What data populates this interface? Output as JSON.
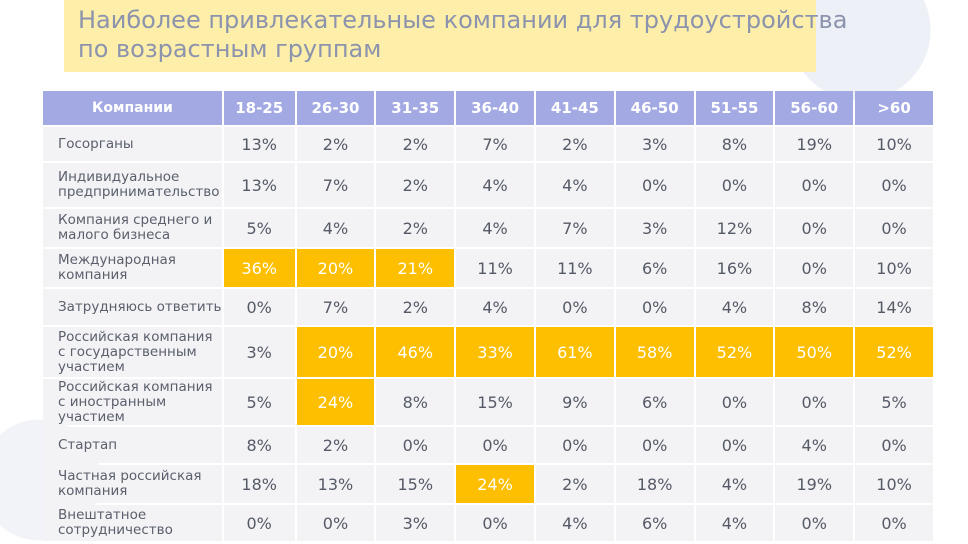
{
  "title": {
    "line1": "Наиболее привлекательные компании для трудоустройства",
    "line2": "по возрастным группам"
  },
  "colors": {
    "header_bg": "#a3a9e3",
    "cell_bg": "#f3f3f6",
    "highlight_bg": "#fdbf00",
    "title_bg": "#fdeeaa"
  },
  "chart_data": {
    "type": "table",
    "corner_header": "Компании",
    "columns": [
      "18-25",
      "26-30",
      "31-35",
      "36-40",
      "41-45",
      "46-50",
      "51-55",
      "56-60",
      ">60"
    ],
    "rows": [
      {
        "label": "Госорганы",
        "values": [
          "13%",
          "2%",
          "2%",
          "7%",
          "2%",
          "3%",
          "8%",
          "19%",
          "10%"
        ],
        "highlight": []
      },
      {
        "label": "Индивидуальное предпринимательство",
        "values": [
          "13%",
          "7%",
          "2%",
          "4%",
          "4%",
          "0%",
          "0%",
          "0%",
          "0%"
        ],
        "highlight": []
      },
      {
        "label": "Компания среднего и малого бизнеса",
        "values": [
          "5%",
          "4%",
          "2%",
          "4%",
          "7%",
          "3%",
          "12%",
          "0%",
          "0%"
        ],
        "highlight": []
      },
      {
        "label": "Международная компания",
        "values": [
          "36%",
          "20%",
          "21%",
          "11%",
          "11%",
          "6%",
          "16%",
          "0%",
          "10%"
        ],
        "highlight": [
          0,
          1,
          2
        ]
      },
      {
        "label": "Затрудняюсь ответить",
        "values": [
          "0%",
          "7%",
          "2%",
          "4%",
          "0%",
          "0%",
          "4%",
          "8%",
          "14%"
        ],
        "highlight": []
      },
      {
        "label": "Российская компания с государственным участием",
        "values": [
          "3%",
          "20%",
          "46%",
          "33%",
          "61%",
          "58%",
          "52%",
          "50%",
          "52%"
        ],
        "highlight": [
          1,
          2,
          3,
          4,
          5,
          6,
          7,
          8
        ]
      },
      {
        "label": "Российская компания с иностранным участием",
        "values": [
          "5%",
          "24%",
          "8%",
          "15%",
          "9%",
          "6%",
          "0%",
          "0%",
          "5%"
        ],
        "highlight": [
          1
        ]
      },
      {
        "label": "Стартап",
        "values": [
          "8%",
          "2%",
          "0%",
          "0%",
          "0%",
          "0%",
          "0%",
          "4%",
          "0%"
        ],
        "highlight": []
      },
      {
        "label": "Частная российская компания",
        "values": [
          "18%",
          "13%",
          "15%",
          "24%",
          "2%",
          "18%",
          "4%",
          "19%",
          "10%"
        ],
        "highlight": [
          3
        ]
      },
      {
        "label": "Внештатное сотрудничество",
        "values": [
          "0%",
          "0%",
          "3%",
          "0%",
          "4%",
          "6%",
          "4%",
          "0%",
          "0%"
        ],
        "highlight": []
      }
    ]
  }
}
